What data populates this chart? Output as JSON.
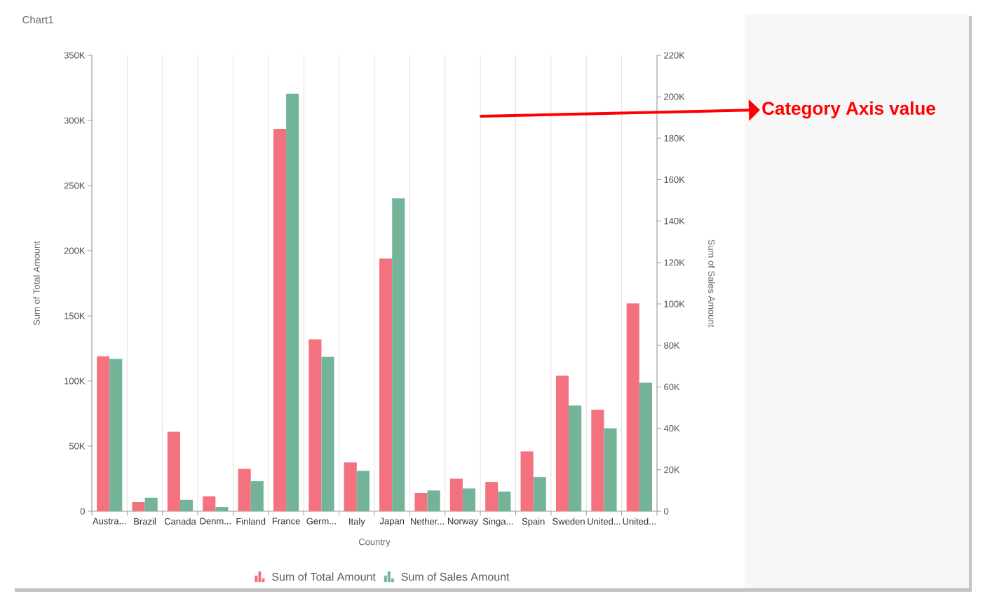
{
  "chart_data": {
    "type": "bar",
    "title": "Chart1",
    "xlabel": "Country",
    "ylabel": "Sum of Total Amount",
    "y2label": "Sum of Sales Amount",
    "categories": [
      "Austra...",
      "Brazil",
      "Canada",
      "Denm...",
      "Finland",
      "France",
      "Germ...",
      "Italy",
      "Japan",
      "Nether...",
      "Norway",
      "Singa...",
      "Spain",
      "Sweden",
      "United...",
      "United..."
    ],
    "series": [
      {
        "name": "Sum of Total Amount",
        "color": "#f4727f",
        "values": [
          119000,
          7000,
          61000,
          11500,
          32500,
          293500,
          132000,
          37500,
          194000,
          14000,
          25000,
          22500,
          46000,
          104000,
          78000,
          159500
        ]
      },
      {
        "name": "Sum of Sales Amount",
        "color": "#73b499",
        "axis": "y2",
        "values": [
          73500,
          6500,
          5500,
          2000,
          14500,
          201500,
          74500,
          19500,
          151000,
          10000,
          11000,
          9500,
          16500,
          51000,
          40000,
          62000
        ]
      }
    ],
    "ylim": [
      0,
      350000
    ],
    "yticks": [
      0,
      {
        "value": 50000,
        "label": "50K"
      },
      {
        "value": 100000,
        "label": "100K"
      },
      {
        "value": 150000,
        "label": "150K"
      },
      {
        "value": 200000,
        "label": "200K"
      },
      {
        "value": 250000,
        "label": "250K"
      },
      {
        "value": 300000,
        "label": "300K"
      },
      {
        "value": 350000,
        "label": "350K"
      }
    ],
    "y2lim": [
      0,
      220000
    ],
    "y2ticks": [
      0,
      {
        "value": 20000,
        "label": "20K"
      },
      {
        "value": 40000,
        "label": "40K"
      },
      {
        "value": 60000,
        "label": "60K"
      },
      {
        "value": 80000,
        "label": "80K"
      },
      {
        "value": 100000,
        "label": "100K"
      },
      {
        "value": 120000,
        "label": "120K"
      },
      {
        "value": 140000,
        "label": "140K"
      },
      {
        "value": 160000,
        "label": "160K"
      },
      {
        "value": 180000,
        "label": "180K"
      },
      {
        "value": 200000,
        "label": "200K"
      },
      {
        "value": 220000,
        "label": "220K"
      }
    ],
    "grid": "x",
    "legend": "bottom",
    "annotations": [
      "Category Axis value"
    ]
  }
}
